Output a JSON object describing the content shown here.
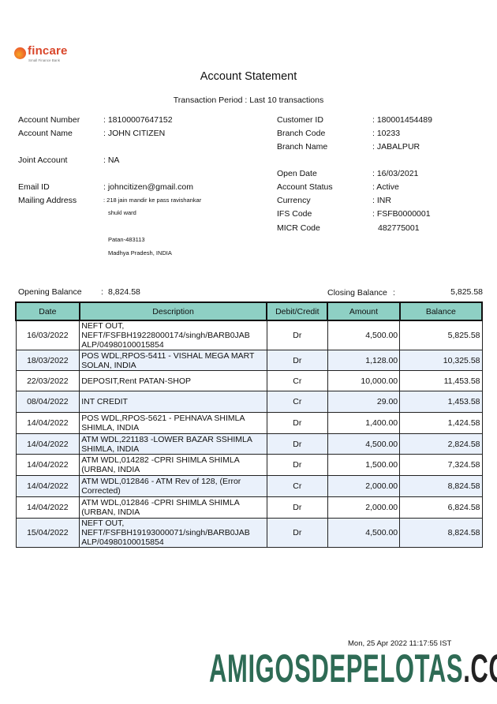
{
  "bank": {
    "name": "fincare",
    "tagline": "Small Finance Bank"
  },
  "title": "Account Statement",
  "period": "Transaction Period : Last 10 transactions",
  "left_fields": [
    {
      "label": "Account Number",
      "value": ": 18100007647152"
    },
    {
      "label": "Account Name",
      "value": ": JOHN CITIZEN"
    },
    {
      "label": "Joint Account",
      "value": ": NA"
    },
    {
      "label": "Email  ID",
      "value": ": johncitizen@gmail.com"
    },
    {
      "label": "Mailing Address",
      "value": ": 218 jain mandir ke pass ravishankar"
    }
  ],
  "address_lines": [
    "shukl ward",
    "Patan-483113",
    "Madhya Pradesh, INDIA"
  ],
  "right_fields": [
    {
      "label": "Customer ID",
      "value": ": 180001454489"
    },
    {
      "label": "Branch Code",
      "value": ": 10233"
    },
    {
      "label": "Branch Name",
      "value": ": JABALPUR"
    },
    {
      "label": "Open Date",
      "value": ": 16/03/2021"
    },
    {
      "label": "Account Status",
      "value": ": Active"
    },
    {
      "label": "Currency",
      "value": ": INR"
    },
    {
      "label": "IFS Code",
      "value": ": FSFB0000001"
    },
    {
      "label": "MICR Code",
      "value": "482775001"
    }
  ],
  "opening": {
    "label": "Opening Balance",
    "sep": ":",
    "value": "8,824.58"
  },
  "closing": {
    "label": "Closing Balance",
    "sep": ":",
    "value": "5,825.58"
  },
  "columns": [
    "Date",
    "Description",
    "Debit/Credit",
    "Amount",
    "Balance"
  ],
  "rows": [
    {
      "date": "16/03/2022",
      "desc": "NEFT OUT, NEFT/FSFBH19228000174/singh/BARB0JAB ALP/04980100015854",
      "type": "Dr",
      "amount": "4,500.00",
      "balance": "5,825.58"
    },
    {
      "date": "18/03/2022",
      "desc": "POS WDL,RPOS-5411 - VISHAL MEGA MART SOLAN, INDIA",
      "type": "Dr",
      "amount": "1,128.00",
      "balance": "10,325.58"
    },
    {
      "date": "22/03/2022",
      "desc": "DEPOSIT,Rent PATAN-SHOP",
      "type": "Cr",
      "amount": "10,000.00",
      "balance": "11,453.58"
    },
    {
      "date": "08/04/2022",
      "desc": "INT CREDIT",
      "type": "Cr",
      "amount": "29.00",
      "balance": "1,453.58"
    },
    {
      "date": "14/04/2022",
      "desc": "POS WDL,RPOS-5621 - PEHNAVA SHIMLA SHIMLA, INDIA",
      "type": "Dr",
      "amount": "1,400.00",
      "balance": "1,424.58"
    },
    {
      "date": "14/04/2022",
      "desc": "ATM WDL,221183 -LOWER BAZAR SSHIMLA SHIMLA, INDIA",
      "type": "Dr",
      "amount": "4,500.00",
      "balance": "2,824.58"
    },
    {
      "date": "14/04/2022",
      "desc": "ATM WDL,014282 -CPRI SHIMLA SHIMLA (URBAN, INDIA",
      "type": "Dr",
      "amount": "1,500.00",
      "balance": "7,324.58"
    },
    {
      "date": "14/04/2022",
      "desc": "ATM WDL,012846 - ATM Rev of 128, (Error Corrected)",
      "type": "Cr",
      "amount": "2,000.00",
      "balance": "8,824.58"
    },
    {
      "date": "14/04/2022",
      "desc": "ATM WDL,012846 -CPRI SHIMLA SHIMLA (URBAN, INDIA",
      "type": "Dr",
      "amount": "2,000.00",
      "balance": "6,824.58"
    },
    {
      "date": "15/04/2022",
      "desc": "NEFT OUT, NEFT/FSFBH19193000071/singh/BARB0JAB ALP/04980100015854",
      "type": "Dr",
      "amount": "4,500.00",
      "balance": "8,824.58"
    }
  ],
  "timestamp": "Mon, 25 Apr 2022 11:17:55 IST",
  "watermark": {
    "main": "AMIGOSDEPELOTAS",
    "suffix": ".COM"
  },
  "colors": {
    "header": "#8ed0c4",
    "alt_row": "#eaf1fb",
    "watermark": "#2e6b55",
    "brand": "#d9462a"
  }
}
